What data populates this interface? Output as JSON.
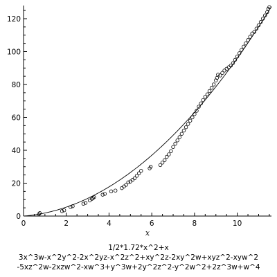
{
  "chart_data": {
    "type": "scatter",
    "xlabel": "x",
    "ylabel": "",
    "xlim": [
      0,
      11.6
    ],
    "ylim": [
      0,
      128
    ],
    "x_ticks": [
      0,
      2,
      4,
      6,
      8,
      10
    ],
    "y_ticks": [
      0,
      20,
      40,
      60,
      80,
      100,
      120
    ],
    "grid": false,
    "legend": "none",
    "curve": {
      "expression": "1/2*1.72*x^2+x",
      "coefficient": 1.72,
      "style": "solid line",
      "color": "#000000"
    },
    "points": {
      "marker": "open circle",
      "color": "#000000",
      "x": [
        0.72,
        0.76,
        1.8,
        1.9,
        2.2,
        2.3,
        2.8,
        2.9,
        3.1,
        3.2,
        3.25,
        3.3,
        3.7,
        3.8,
        4.1,
        4.3,
        4.6,
        4.7,
        4.8,
        4.9,
        5.0,
        5.1,
        5.2,
        5.3,
        5.4,
        5.5,
        5.9,
        5.95,
        6.4,
        6.5,
        6.6,
        6.7,
        6.8,
        6.9,
        7.0,
        7.1,
        7.2,
        7.3,
        7.4,
        7.5,
        7.6,
        7.7,
        7.8,
        7.9,
        8.0,
        8.1,
        8.2,
        8.3,
        8.4,
        8.5,
        8.6,
        8.7,
        8.8,
        8.9,
        9.0,
        9.05,
        9.1,
        9.2,
        9.3,
        9.4,
        9.5,
        9.6,
        9.7,
        9.8,
        9.9,
        10.0,
        10.1,
        10.2,
        10.3,
        10.4,
        10.5,
        10.6,
        10.7,
        10.8,
        10.9,
        11.0,
        11.1,
        11.2,
        11.3,
        11.4,
        11.45,
        11.5
      ],
      "y": [
        1.2,
        1.8,
        3.0,
        3.5,
        5.5,
        6.0,
        7.5,
        8.0,
        9.5,
        10.5,
        11.0,
        11.5,
        13.0,
        13.5,
        15.0,
        15.5,
        17.0,
        18.0,
        19.0,
        20.5,
        21.0,
        22.0,
        23.0,
        24.5,
        26.0,
        27.5,
        29.0,
        30.0,
        31.0,
        32.5,
        34.0,
        36.0,
        37.5,
        39.5,
        42.0,
        44.0,
        46.0,
        48.0,
        50.0,
        52.0,
        54.0,
        56.0,
        58.0,
        60.0,
        62.0,
        64.0,
        66.5,
        68.5,
        70.5,
        72.5,
        74.0,
        76.0,
        78.0,
        80.0,
        82.5,
        84.0,
        86.0,
        85.5,
        87.0,
        88.5,
        89.5,
        90.5,
        91.5,
        93.0,
        95.0,
        97.0,
        99.0,
        101.0,
        103.0,
        105.0,
        107.0,
        109.0,
        111.0,
        112.0,
        114.0,
        116.0,
        118.0,
        120.0,
        122.0,
        124.0,
        126.0,
        127.0
      ]
    }
  },
  "caption": {
    "line1": "1/2*1.72*x^2+x",
    "line2": "3x^3w-x^2y^2-2x^2yz-x^2z^2+xy^2z-2xy^2w+xyz^2-xyw^2",
    "line3": "-5xz^2w-2xzw^2-xw^3+y^3w+2y^2z^2-y^2w^2+2z^3w+w^4"
  }
}
